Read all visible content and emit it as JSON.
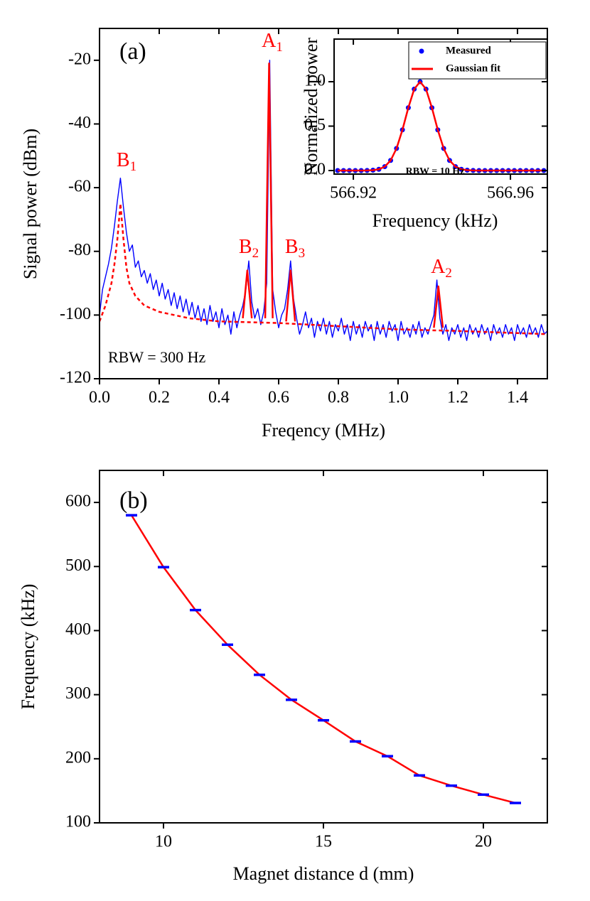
{
  "chart_data": [
    {
      "type": "line",
      "xlabel": "Freqency (MHz)",
      "ylabel": "Signal power (dBm)",
      "xlim": [
        0,
        1.5
      ],
      "ylim": [
        -120,
        -10
      ],
      "xticks": [
        {
          "value": 0,
          "label": "0.0"
        },
        0.2,
        0.4,
        0.6,
        0.8,
        {
          "value": 1,
          "label": "1.0"
        },
        1.2,
        1.4
      ],
      "yticks": [
        -120,
        -100,
        -80,
        -60,
        -40,
        -20
      ],
      "series": [
        {
          "color": "#0000ff",
          "style": "line",
          "x": [
            0,
            0.01,
            0.02,
            0.03,
            0.04,
            0.05,
            0.06,
            0.07,
            0.08,
            0.09,
            0.1,
            0.11,
            0.12,
            0.13,
            0.14,
            0.15,
            0.16,
            0.17,
            0.18,
            0.19,
            0.2,
            0.21,
            0.22,
            0.23,
            0.24,
            0.25,
            0.26,
            0.27,
            0.28,
            0.29,
            0.3,
            0.31,
            0.32,
            0.33,
            0.34,
            0.35,
            0.36,
            0.37,
            0.38,
            0.39,
            0.4,
            0.41,
            0.42,
            0.43,
            0.44,
            0.45,
            0.46,
            0.47,
            0.48,
            0.49,
            0.5,
            0.51,
            0.52,
            0.53,
            0.54,
            0.55,
            0.56,
            0.57,
            0.58,
            0.59,
            0.6,
            0.61,
            0.62,
            0.63,
            0.64,
            0.65,
            0.66,
            0.67,
            0.68,
            0.69,
            0.7,
            0.71,
            0.72,
            0.73,
            0.74,
            0.75,
            0.76,
            0.77,
            0.78,
            0.79,
            0.8,
            0.81,
            0.82,
            0.83,
            0.84,
            0.85,
            0.86,
            0.87,
            0.88,
            0.89,
            0.9,
            0.91,
            0.92,
            0.93,
            0.94,
            0.95,
            0.96,
            0.97,
            0.98,
            0.99,
            1,
            1.01,
            1.02,
            1.03,
            1.04,
            1.05,
            1.06,
            1.07,
            1.08,
            1.09,
            1.1,
            1.11,
            1.12,
            1.13,
            1.14,
            1.15,
            1.16,
            1.17,
            1.18,
            1.19,
            1.2,
            1.21,
            1.22,
            1.23,
            1.24,
            1.25,
            1.26,
            1.27,
            1.28,
            1.29,
            1.3,
            1.31,
            1.32,
            1.33,
            1.34,
            1.35,
            1.36,
            1.37,
            1.38,
            1.39,
            1.4,
            1.41,
            1.42,
            1.43,
            1.44,
            1.45,
            1.46,
            1.47,
            1.48,
            1.49,
            1.5
          ],
          "values": [
            -100,
            -92,
            -88,
            -84,
            -79,
            -72,
            -64,
            -57,
            -66,
            -74,
            -80,
            -78,
            -85,
            -83,
            -88,
            -86,
            -90,
            -87,
            -92,
            -89,
            -94,
            -90,
            -95,
            -92,
            -97,
            -93,
            -98,
            -94,
            -99,
            -95,
            -100,
            -96,
            -101,
            -97,
            -102,
            -98,
            -103,
            -97,
            -102,
            -99,
            -104,
            -98,
            -103,
            -100,
            -106,
            -99,
            -104,
            -100,
            -97,
            -92,
            -83,
            -96,
            -101,
            -98,
            -103,
            -99,
            -90,
            -20,
            -92,
            -99,
            -104,
            -100,
            -98,
            -92,
            -83,
            -95,
            -101,
            -106,
            -103,
            -99,
            -104,
            -101,
            -107,
            -102,
            -105,
            -101,
            -106,
            -102,
            -107,
            -103,
            -105,
            -101,
            -106,
            -103,
            -108,
            -102,
            -106,
            -103,
            -107,
            -102,
            -105,
            -103,
            -108,
            -102,
            -106,
            -103,
            -107,
            -102,
            -105,
            -103,
            -108,
            -102,
            -106,
            -104,
            -107,
            -103,
            -106,
            -102,
            -107,
            -104,
            -106,
            -103,
            -100,
            -89,
            -101,
            -106,
            -103,
            -108,
            -104,
            -106,
            -103,
            -107,
            -104,
            -108,
            -103,
            -106,
            -104,
            -107,
            -103,
            -106,
            -104,
            -108,
            -103,
            -106,
            -104,
            -107,
            -103,
            -106,
            -104,
            -108,
            -103,
            -106,
            -104,
            -107,
            -103,
            -106,
            -104,
            -107,
            -103,
            -106,
            -105
          ]
        },
        {
          "color": "#ff0000",
          "style": "dashed",
          "x": [
            0,
            0.02,
            0.04,
            0.05,
            0.06,
            0.07,
            0.08,
            0.09,
            0.1,
            0.12,
            0.15,
            0.2,
            0.3,
            0.4,
            0.6,
            0.8,
            1,
            1.2,
            1.5
          ],
          "values": [
            -102,
            -97,
            -90,
            -84,
            -76,
            -65,
            -76,
            -85,
            -90,
            -94,
            -97,
            -99,
            -101,
            -102,
            -102.5,
            -103.5,
            -104.5,
            -105,
            -106
          ]
        },
        {
          "color": "#ff0000",
          "style": "line",
          "x": [
            0.48,
            0.495,
            0.51,
            0.53,
            0.555,
            0.568,
            0.58,
            0.6,
            0.625,
            0.64,
            0.655,
            0.7,
            1.12,
            1.135,
            1.15
          ],
          "values": [
            -101,
            -86,
            -101,
            null,
            -101,
            -21,
            -101,
            null,
            -102,
            -86,
            -102,
            null,
            -104,
            -91,
            -104
          ]
        }
      ],
      "annotations": [
        {
          "text": "(a)"
        },
        {
          "text": "A",
          "sub": "1"
        },
        {
          "text": "B",
          "sub": "1"
        },
        {
          "text": "B",
          "sub": "2"
        },
        {
          "text": "B",
          "sub": "3"
        },
        {
          "text": "A",
          "sub": "2"
        },
        {
          "text": "RBW = 300 Hz"
        }
      ]
    },
    {
      "type": "line",
      "xlabel": "Frequency (kHz)",
      "ylabel": "Normalized power",
      "xlim": [
        566.9151,
        566.9694
      ],
      "ylim": [
        -0.04,
        1.48
      ],
      "xticks": [
        566.92,
        566.96
      ],
      "yticks": [
        {
          "value": 0,
          "label": "0.0"
        },
        0.5,
        {
          "value": 1,
          "label": "1.0"
        }
      ],
      "legend": "upper right",
      "series": [
        {
          "name": "Measured",
          "color": "#0000ff",
          "style": "dots",
          "x": [
            566.916,
            566.9175,
            566.919,
            566.9205,
            566.922,
            566.9235,
            566.925,
            566.9265,
            566.928,
            566.9295,
            566.931,
            566.9325,
            566.934,
            566.9355,
            566.937,
            566.9385,
            566.94,
            566.9415,
            566.943,
            566.9445,
            566.946,
            566.9475,
            566.949,
            566.9505,
            566.952,
            566.9535,
            566.955,
            566.9565,
            566.958,
            566.9595,
            566.961,
            566.9625,
            566.964,
            566.9655,
            566.967,
            566.9685
          ],
          "values": [
            0,
            0,
            0,
            0,
            0,
            0.001,
            0.004,
            0.014,
            0.044,
            0.114,
            0.249,
            0.458,
            0.707,
            0.917,
            1,
            0.917,
            0.707,
            0.458,
            0.249,
            0.114,
            0.044,
            0.014,
            0.004,
            0.001,
            0,
            0,
            0,
            0,
            0,
            0,
            0,
            0,
            0,
            0,
            0,
            0
          ]
        },
        {
          "name": "Gaussian fit",
          "color": "#ff0000",
          "style": "line",
          "x": [
            566.916,
            566.9175,
            566.919,
            566.9205,
            566.922,
            566.9235,
            566.925,
            566.9265,
            566.928,
            566.9295,
            566.931,
            566.9325,
            566.934,
            566.9355,
            566.937,
            566.9385,
            566.94,
            566.9415,
            566.943,
            566.9445,
            566.946,
            566.9475,
            566.949,
            566.9505,
            566.952,
            566.9535,
            566.955,
            566.9565,
            566.958,
            566.9595,
            566.961,
            566.9625,
            566.964,
            566.9655,
            566.967,
            566.9685
          ],
          "values": [
            0,
            0,
            0,
            0,
            0,
            0.001,
            0.004,
            0.014,
            0.044,
            0.114,
            0.249,
            0.458,
            0.707,
            0.917,
            1,
            0.917,
            0.707,
            0.458,
            0.249,
            0.114,
            0.044,
            0.014,
            0.004,
            0.001,
            0,
            0,
            0,
            0,
            0,
            0,
            0,
            0,
            0,
            0,
            0,
            0
          ]
        }
      ],
      "annotations": [
        {
          "text": "RBW = 10 Hz"
        }
      ]
    },
    {
      "type": "line",
      "xlabel": "Magnet distance d (mm)",
      "ylabel": "Frequency (kHz)",
      "xlim": [
        8,
        22
      ],
      "ylim": [
        100,
        650
      ],
      "xticks": [
        10,
        15,
        20
      ],
      "yticks": [
        100,
        200,
        300,
        400,
        500,
        600
      ],
      "series": [
        {
          "color": "#ff0000",
          "style": "line",
          "x": [
            9,
            10,
            11,
            12,
            13,
            14,
            15,
            16,
            17,
            18,
            19,
            20,
            21
          ],
          "values": [
            580,
            499,
            432,
            378,
            331,
            292,
            260,
            227,
            204,
            174,
            158,
            144,
            131
          ]
        },
        {
          "color": "#0000ff",
          "style": "bars",
          "x": [
            9,
            10,
            11,
            12,
            13,
            14,
            15,
            16,
            17,
            18,
            19,
            20,
            21
          ],
          "values": [
            580,
            499,
            432,
            378,
            331,
            292,
            260,
            227,
            204,
            174,
            158,
            144,
            131
          ]
        }
      ],
      "annotations": [
        {
          "text": "(b)"
        }
      ]
    }
  ]
}
